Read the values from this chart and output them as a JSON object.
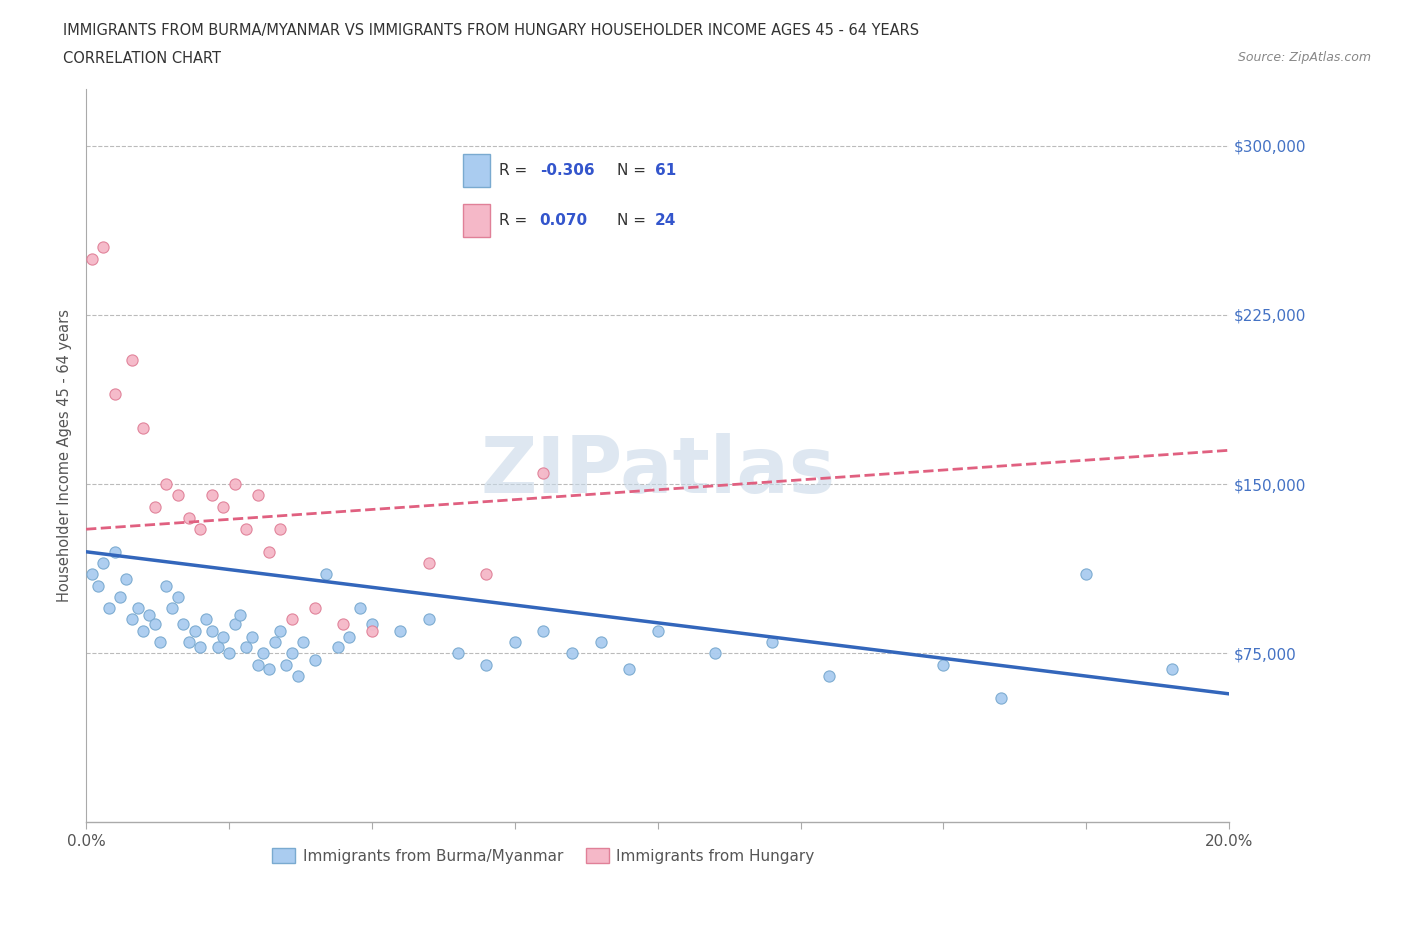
{
  "title_line1": "IMMIGRANTS FROM BURMA/MYANMAR VS IMMIGRANTS FROM HUNGARY HOUSEHOLDER INCOME AGES 45 - 64 YEARS",
  "title_line2": "CORRELATION CHART",
  "source_text": "Source: ZipAtlas.com",
  "ylabel": "Householder Income Ages 45 - 64 years",
  "xlim": [
    0.0,
    0.2
  ],
  "ylim": [
    0,
    325000
  ],
  "xticks": [
    0.0,
    0.025,
    0.05,
    0.075,
    0.1,
    0.125,
    0.15,
    0.175,
    0.2
  ],
  "xtick_labels": [
    "0.0%",
    "",
    "",
    "",
    "",
    "",
    "",
    "",
    "20.0%"
  ],
  "ytick_values": [
    75000,
    150000,
    225000,
    300000
  ],
  "ytick_labels": [
    "$75,000",
    "$150,000",
    "$225,000",
    "$300,000"
  ],
  "grid_color": "#bbbbbb",
  "watermark": "ZIPatlas",
  "watermark_color": "#c8d8e8",
  "bg_color": "#ffffff",
  "burma_color": "#aaccf0",
  "burma_edge_color": "#7aaad0",
  "hungary_color": "#f5b8c8",
  "hungary_edge_color": "#e08098",
  "burma_line_color": "#3366bb",
  "hungary_line_color": "#e06080",
  "legend_color": "#3355cc",
  "burma_R": -0.306,
  "burma_N": 61,
  "hungary_R": 0.07,
  "hungary_N": 24,
  "burma_scatter_x": [
    0.001,
    0.002,
    0.003,
    0.004,
    0.005,
    0.006,
    0.007,
    0.008,
    0.009,
    0.01,
    0.011,
    0.012,
    0.013,
    0.014,
    0.015,
    0.016,
    0.017,
    0.018,
    0.019,
    0.02,
    0.021,
    0.022,
    0.023,
    0.024,
    0.025,
    0.026,
    0.027,
    0.028,
    0.029,
    0.03,
    0.031,
    0.032,
    0.033,
    0.034,
    0.035,
    0.036,
    0.037,
    0.038,
    0.04,
    0.042,
    0.044,
    0.046,
    0.048,
    0.05,
    0.055,
    0.06,
    0.065,
    0.07,
    0.075,
    0.08,
    0.085,
    0.09,
    0.095,
    0.1,
    0.11,
    0.12,
    0.13,
    0.15,
    0.16,
    0.175,
    0.19
  ],
  "burma_scatter_y": [
    110000,
    105000,
    115000,
    95000,
    120000,
    100000,
    108000,
    90000,
    95000,
    85000,
    92000,
    88000,
    80000,
    105000,
    95000,
    100000,
    88000,
    80000,
    85000,
    78000,
    90000,
    85000,
    78000,
    82000,
    75000,
    88000,
    92000,
    78000,
    82000,
    70000,
    75000,
    68000,
    80000,
    85000,
    70000,
    75000,
    65000,
    80000,
    72000,
    110000,
    78000,
    82000,
    95000,
    88000,
    85000,
    90000,
    75000,
    70000,
    80000,
    85000,
    75000,
    80000,
    68000,
    85000,
    75000,
    80000,
    65000,
    70000,
    55000,
    110000,
    68000
  ],
  "hungary_scatter_x": [
    0.001,
    0.003,
    0.005,
    0.008,
    0.01,
    0.012,
    0.014,
    0.016,
    0.018,
    0.02,
    0.022,
    0.024,
    0.026,
    0.028,
    0.03,
    0.032,
    0.034,
    0.036,
    0.04,
    0.045,
    0.05,
    0.06,
    0.07,
    0.08
  ],
  "hungary_scatter_y": [
    250000,
    255000,
    190000,
    205000,
    175000,
    140000,
    150000,
    145000,
    135000,
    130000,
    145000,
    140000,
    150000,
    130000,
    145000,
    120000,
    130000,
    90000,
    95000,
    88000,
    85000,
    115000,
    110000,
    155000
  ],
  "burma_trend_x": [
    0.0,
    0.2
  ],
  "burma_trend_y": [
    120000,
    57000
  ],
  "hungary_trend_x": [
    0.0,
    0.2
  ],
  "hungary_trend_y": [
    130000,
    165000
  ]
}
